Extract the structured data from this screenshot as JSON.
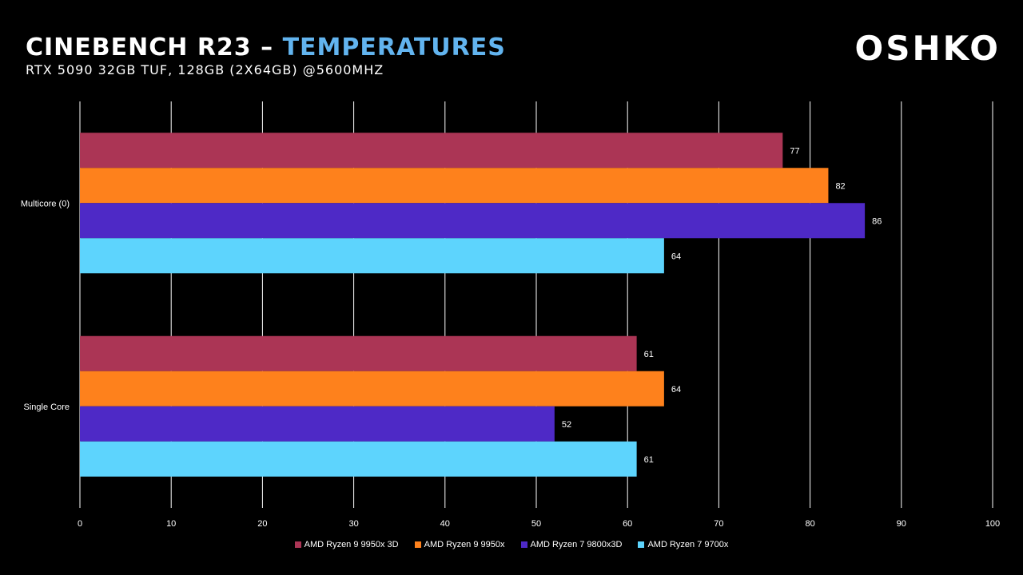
{
  "header": {
    "title_main": "Cinebench R23 – ",
    "title_highlight": "Temperatures",
    "subtitle": "RTX 5090 32GB TUF, 128GB (2x64GB) @5600MHz",
    "logo": "OSHKO"
  },
  "chart_data": {
    "type": "bar",
    "orientation": "horizontal",
    "categories": [
      "Multicore (0)",
      "Single Core"
    ],
    "series": [
      {
        "name": "AMD Ryzen 9 9950x 3D",
        "color": "#ab3555",
        "values": [
          77,
          61
        ]
      },
      {
        "name": "AMD Ryzen 9 9950x",
        "color": "#fe811c",
        "values": [
          82,
          64
        ]
      },
      {
        "name": "AMD Ryzen 7 9800x3D",
        "color": "#4e29c6",
        "values": [
          86,
          52
        ]
      },
      {
        "name": "AMD Ryzen 7 9700x",
        "color": "#5dd4fd",
        "values": [
          64,
          61
        ]
      }
    ],
    "xlim": [
      0,
      100
    ],
    "xticks": [
      0,
      10,
      20,
      30,
      40,
      50,
      60,
      70,
      80,
      90,
      100
    ],
    "grid": true,
    "legend_position": "bottom"
  }
}
